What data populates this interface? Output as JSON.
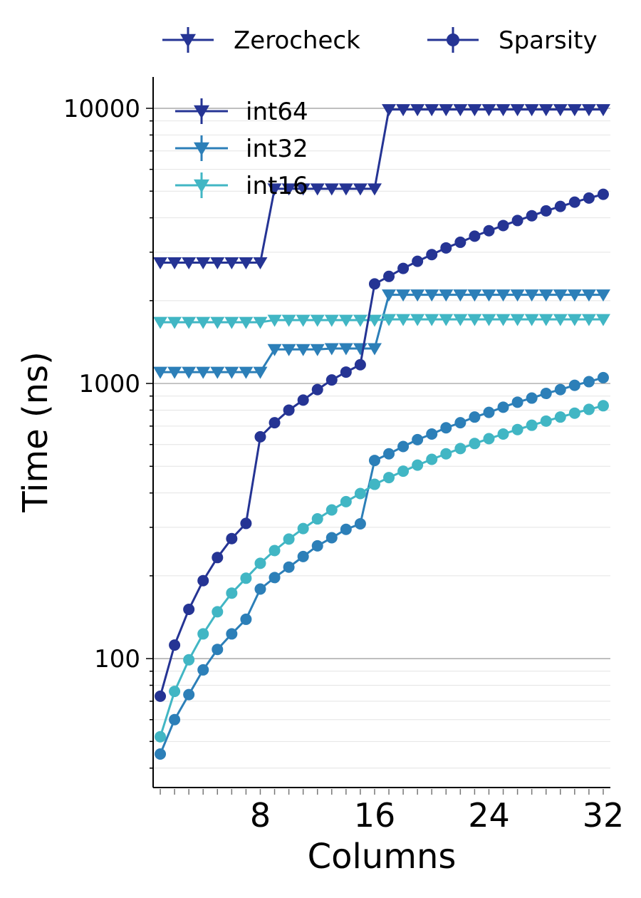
{
  "chart_data": {
    "type": "line",
    "xlabel": "Columns",
    "ylabel": "Time (ns)",
    "xlim": [
      0.5,
      32.5
    ],
    "ylim": [
      34,
      13000
    ],
    "yscale": "log",
    "x_ticks": [
      8,
      16,
      24,
      32
    ],
    "y_ticks": [
      100,
      1000,
      10000
    ],
    "grid": "horizontal major and minor",
    "x": [
      1,
      2,
      3,
      4,
      5,
      6,
      7,
      8,
      9,
      10,
      11,
      12,
      13,
      14,
      15,
      16,
      17,
      18,
      19,
      20,
      21,
      22,
      23,
      24,
      25,
      26,
      27,
      28,
      29,
      30,
      31,
      32
    ],
    "series_colors": {
      "int64": "#253494",
      "int32": "#2c7fb8",
      "int16": "#41b6c4"
    },
    "marker_legend": [
      {
        "label": "Zerocheck",
        "marker": "triangle-down",
        "color": "#253494"
      },
      {
        "label": "Sparsity",
        "marker": "circle",
        "color": "#253494"
      }
    ],
    "color_legend": [
      {
        "label": "int64",
        "color": "#253494"
      },
      {
        "label": "int32",
        "color": "#2c7fb8"
      },
      {
        "label": "int16",
        "color": "#41b6c4"
      }
    ],
    "series": [
      {
        "name": "int64",
        "method": "Zerocheck",
        "marker": "triangle-down",
        "color": "#253494",
        "values": [
          2750,
          2750,
          2750,
          2750,
          2750,
          2750,
          2750,
          2750,
          5100,
          5100,
          5100,
          5100,
          5100,
          5100,
          5100,
          5100,
          9900,
          9900,
          9900,
          9900,
          9900,
          9900,
          9900,
          9900,
          9900,
          9900,
          9900,
          9900,
          9900,
          9900,
          9900,
          9900
        ]
      },
      {
        "name": "int32",
        "method": "Zerocheck",
        "marker": "triangle-down",
        "color": "#2c7fb8",
        "values": [
          1100,
          1100,
          1100,
          1100,
          1100,
          1100,
          1100,
          1100,
          1330,
          1330,
          1330,
          1330,
          1340,
          1340,
          1340,
          1340,
          2100,
          2100,
          2100,
          2100,
          2100,
          2100,
          2100,
          2100,
          2100,
          2100,
          2100,
          2100,
          2100,
          2100,
          2100,
          2100
        ]
      },
      {
        "name": "int16",
        "method": "Zerocheck",
        "marker": "triangle-down",
        "color": "#41b6c4",
        "values": [
          1670,
          1670,
          1670,
          1670,
          1670,
          1670,
          1670,
          1670,
          1700,
          1700,
          1700,
          1700,
          1700,
          1700,
          1700,
          1700,
          1710,
          1710,
          1710,
          1710,
          1710,
          1710,
          1710,
          1710,
          1710,
          1710,
          1710,
          1710,
          1710,
          1710,
          1710,
          1710
        ]
      },
      {
        "name": "int64",
        "method": "Sparsity",
        "marker": "circle",
        "color": "#253494",
        "values": [
          73,
          112,
          151,
          192,
          233,
          273,
          310,
          640,
          720,
          800,
          870,
          950,
          1030,
          1100,
          1170,
          2300,
          2450,
          2620,
          2780,
          2940,
          3110,
          3260,
          3430,
          3590,
          3750,
          3910,
          4070,
          4240,
          4400,
          4560,
          4720,
          4870
        ]
      },
      {
        "name": "int32",
        "method": "Sparsity",
        "marker": "circle",
        "color": "#2c7fb8",
        "values": [
          45,
          60,
          74,
          91,
          108,
          123,
          139,
          179,
          197,
          215,
          235,
          257,
          275,
          295,
          309,
          525,
          555,
          590,
          625,
          655,
          690,
          720,
          755,
          785,
          820,
          855,
          885,
          920,
          950,
          985,
          1015,
          1050
        ]
      },
      {
        "name": "int16",
        "method": "Sparsity",
        "marker": "circle",
        "color": "#41b6c4",
        "values": [
          52,
          76,
          99,
          123,
          148,
          173,
          196,
          222,
          247,
          272,
          297,
          322,
          347,
          372,
          398,
          430,
          455,
          480,
          505,
          530,
          555,
          580,
          605,
          630,
          655,
          680,
          705,
          730,
          755,
          780,
          805,
          830
        ]
      }
    ]
  }
}
